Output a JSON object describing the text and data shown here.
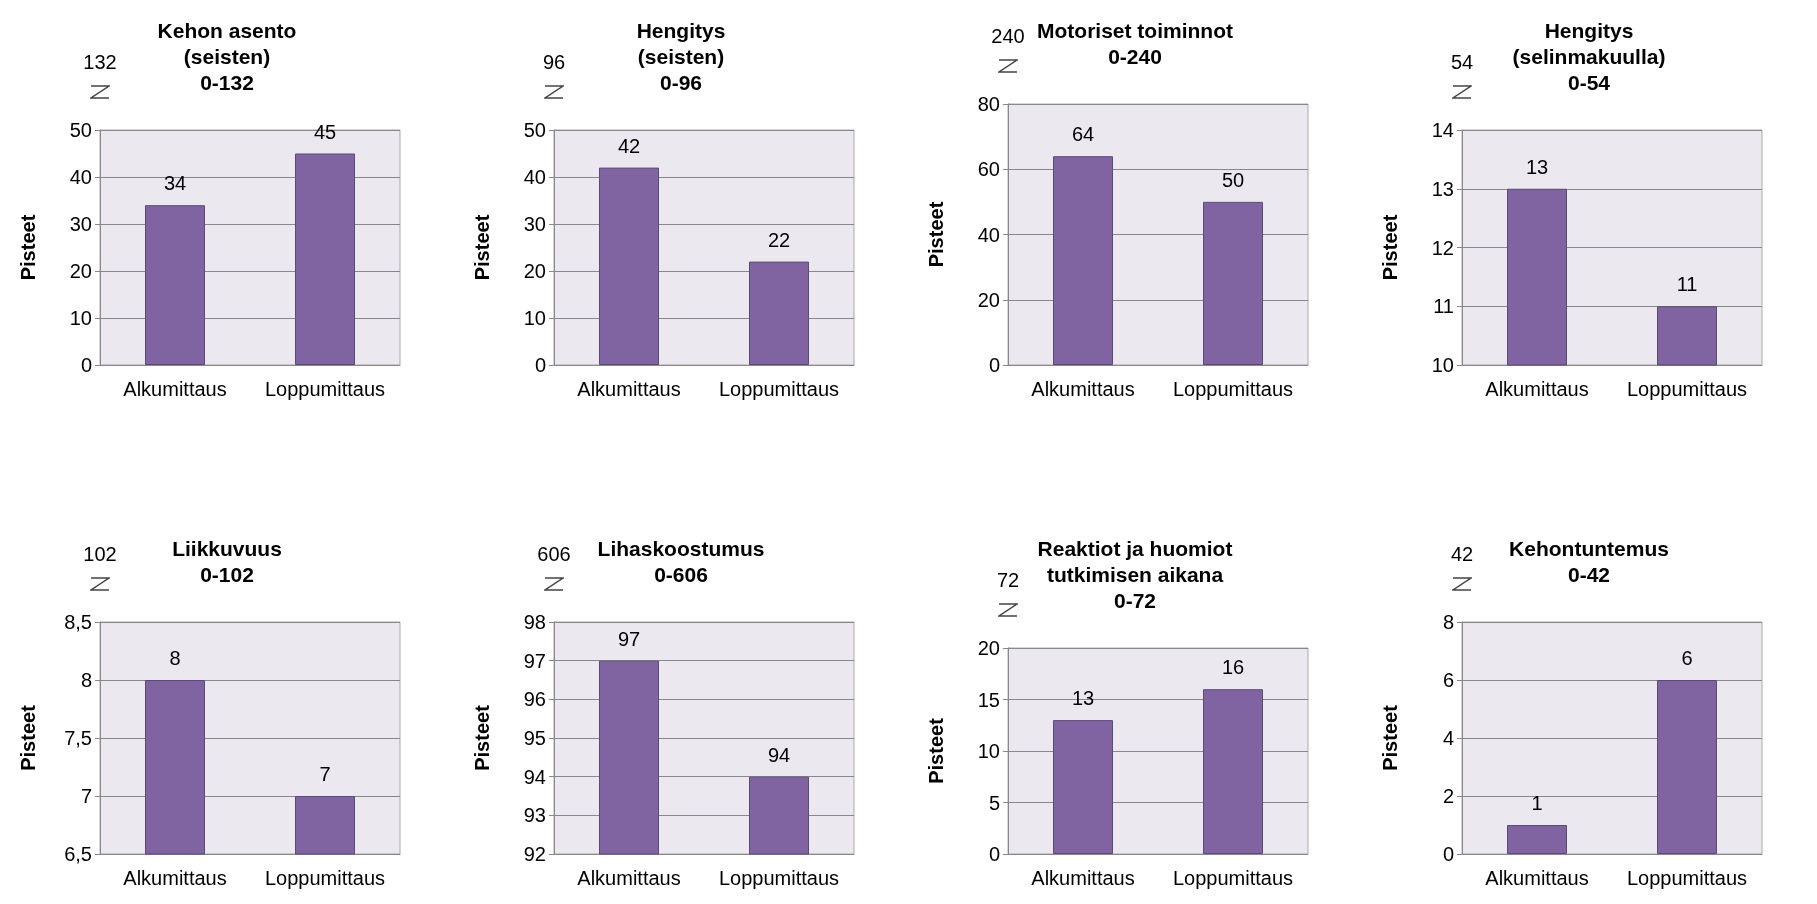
{
  "chart_data": [
    {
      "type": "bar",
      "title": "Kehon asento\n(seisten)\n0-132",
      "ylabel": "Pisteet",
      "categories": [
        "Alkumittaus",
        "Loppumittaus"
      ],
      "values": [
        34,
        45
      ],
      "color": "#8064a2",
      "ylim": [
        0,
        50
      ],
      "yticks": [
        0,
        10,
        20,
        30,
        40,
        50
      ],
      "grid": "y",
      "data_labels": true,
      "annotations": [
        "132"
      ]
    },
    {
      "type": "bar",
      "title": "Hengitys\n(seisten)\n0-96",
      "ylabel": "Pisteet",
      "categories": [
        "Alkumittaus",
        "Loppumittaus"
      ],
      "values": [
        42,
        22
      ],
      "color": "#8064a2",
      "ylim": [
        0,
        50
      ],
      "yticks": [
        0,
        10,
        20,
        30,
        40,
        50
      ],
      "grid": "y",
      "data_labels": true,
      "annotations": [
        "96"
      ]
    },
    {
      "type": "bar",
      "title": "Motoriset toiminnot\n0-240",
      "ylabel": "Pisteet",
      "categories": [
        "Alkumittaus",
        "Loppumittaus"
      ],
      "values": [
        64,
        50
      ],
      "color": "#8064a2",
      "ylim": [
        0,
        80
      ],
      "yticks": [
        0,
        20,
        40,
        60,
        80
      ],
      "grid": "y",
      "data_labels": true,
      "annotations": [
        "240"
      ]
    },
    {
      "type": "bar",
      "title": "Hengitys\n(selinmakuulla)\n0-54",
      "ylabel": "Pisteet",
      "categories": [
        "Alkumittaus",
        "Loppumittaus"
      ],
      "values": [
        13,
        11
      ],
      "color": "#8064a2",
      "ylim": [
        10,
        14
      ],
      "yticks": [
        10,
        11,
        12,
        13,
        14
      ],
      "grid": "y",
      "data_labels": true,
      "annotations": [
        "54"
      ]
    },
    {
      "type": "bar",
      "title": "Liikkuvuus\n0-102",
      "ylabel": "Pisteet",
      "categories": [
        "Alkumittaus",
        "Loppumittaus"
      ],
      "values": [
        8,
        7
      ],
      "color": "#8064a2",
      "ylim": [
        6.5,
        8.5
      ],
      "yticks": [
        {
          "value": 6.5,
          "label": "6,5"
        },
        7,
        {
          "value": 7.5,
          "label": "7,5"
        },
        8,
        {
          "value": 8.5,
          "label": "8,5"
        }
      ],
      "grid": "y",
      "data_labels": true,
      "annotations": [
        "102"
      ]
    },
    {
      "type": "bar",
      "title": "Lihaskoostumus\n0-606",
      "ylabel": "Pisteet",
      "categories": [
        "Alkumittaus",
        "Loppumittaus"
      ],
      "values": [
        97,
        94
      ],
      "color": "#8064a2",
      "ylim": [
        92,
        98
      ],
      "yticks": [
        92,
        93,
        94,
        95,
        96,
        97,
        98
      ],
      "grid": "y",
      "data_labels": true,
      "annotations": [
        "606"
      ]
    },
    {
      "type": "bar",
      "title": "Reaktiot ja huomiot\ntutkimisen aikana\n0-72",
      "ylabel": "Pisteet",
      "categories": [
        "Alkumittaus",
        "Loppumittaus"
      ],
      "values": [
        13,
        16
      ],
      "color": "#8064a2",
      "ylim": [
        0,
        20
      ],
      "yticks": [
        0,
        5,
        10,
        15,
        20
      ],
      "grid": "y",
      "data_labels": true,
      "annotations": [
        "72"
      ]
    },
    {
      "type": "bar",
      "title": "Kehontuntemus\n0-42",
      "ylabel": "Pisteet",
      "categories": [
        "Alkumittaus",
        "Loppumittaus"
      ],
      "values": [
        1,
        6
      ],
      "color": "#8064a2",
      "ylim": [
        0,
        8
      ],
      "yticks": [
        0,
        2,
        4,
        6,
        8
      ],
      "grid": "y",
      "data_labels": true,
      "annotations": [
        "42"
      ]
    }
  ]
}
